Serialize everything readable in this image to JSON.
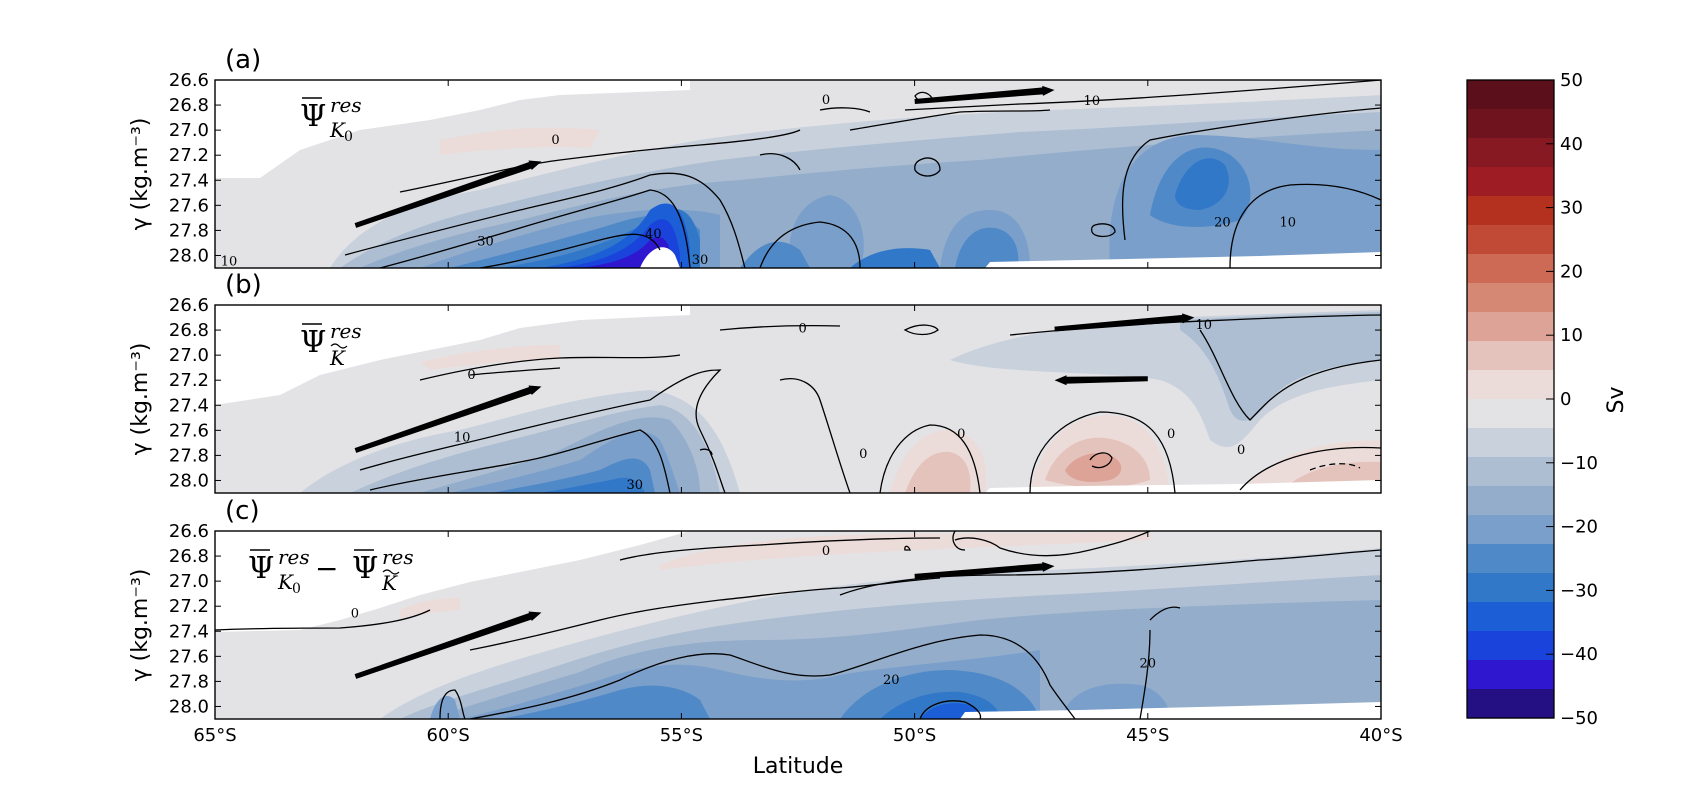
{
  "chart_data": {
    "type": "heatmap",
    "xlabel": "Latitude",
    "ylabel": "γ (kg.m⁻³)",
    "xlim": [
      -65,
      -40
    ],
    "ylim": [
      26.6,
      28.1
    ],
    "y_inverted": true,
    "x_ticks": [
      "65°S",
      "60°S",
      "55°S",
      "50°S",
      "45°S",
      "40°S"
    ],
    "y_ticks": [
      "26.6",
      "26.8",
      "27.0",
      "27.2",
      "27.4",
      "27.6",
      "27.8",
      "28.0"
    ],
    "colorbar": {
      "label": "Sv",
      "range": [
        -50,
        50
      ],
      "tick_labels": [
        "50",
        "40",
        "30",
        "20",
        "10",
        "0",
        "−10",
        "−20",
        "−30",
        "−40",
        "−50"
      ],
      "colors": [
        "#5a0f1a",
        "#6f131e",
        "#861922",
        "#9e1d25",
        "#b4301f",
        "#c04a36",
        "#cc6a56",
        "#d58874",
        "#dda397",
        "#e4c3bc",
        "#ecdcd9",
        "#e3e3e6",
        "#c9d1dc",
        "#adbed2",
        "#93adcb",
        "#7a9fca",
        "#5089c7",
        "#3278c9",
        "#1b5ed6",
        "#1a43db",
        "#2f17cf",
        "#241083"
      ]
    },
    "panels": [
      {
        "id": "a",
        "label": "(a)",
        "equation": "Ψ̄ res K0",
        "contour_labels": [
          {
            "text": "0",
            "lat": -57.7,
            "gamma": 27.07
          },
          {
            "text": "0",
            "lat": -51.9,
            "gamma": 26.75
          },
          {
            "text": "10",
            "lat": -46.2,
            "gamma": 26.76
          },
          {
            "text": "30",
            "lat": -59.2,
            "gamma": 27.88
          },
          {
            "text": "40",
            "lat": -55.6,
            "gamma": 27.82
          },
          {
            "text": "30",
            "lat": -54.6,
            "gamma": 28.03
          },
          {
            "text": "20",
            "lat": -43.4,
            "gamma": 27.73
          },
          {
            "text": "10",
            "lat": -42.0,
            "gamma": 27.73
          },
          {
            "text": "10",
            "lat": -64.7,
            "gamma": 28.04
          }
        ],
        "arrows": [
          {
            "from": [
              -62.0,
              27.75
            ],
            "to": [
              -58.0,
              27.25
            ]
          },
          {
            "from": [
              -50.0,
              26.76
            ],
            "to": [
              -47.0,
              26.68
            ]
          }
        ]
      },
      {
        "id": "b",
        "label": "(b)",
        "equation": "Ψ̄ res K̃",
        "contour_labels": [
          {
            "text": "0",
            "lat": -59.5,
            "gamma": 27.15
          },
          {
            "text": "0",
            "lat": -52.4,
            "gamma": 26.78
          },
          {
            "text": "10",
            "lat": -43.8,
            "gamma": 26.75
          },
          {
            "text": "10",
            "lat": -59.7,
            "gamma": 27.65
          },
          {
            "text": "0",
            "lat": -51.1,
            "gamma": 27.78
          },
          {
            "text": "0",
            "lat": -49.0,
            "gamma": 27.62
          },
          {
            "text": "0",
            "lat": -44.5,
            "gamma": 27.62
          },
          {
            "text": "0",
            "lat": -43.0,
            "gamma": 27.75
          },
          {
            "text": "30",
            "lat": -56.0,
            "gamma": 28.03
          }
        ],
        "arrows": [
          {
            "from": [
              -47.0,
              26.78
            ],
            "to": [
              -44.0,
              26.7
            ]
          },
          {
            "from": [
              -45.0,
              27.2
            ],
            "to": [
              -47.0,
              27.2
            ]
          },
          {
            "from": [
              -62.0,
              27.75
            ],
            "to": [
              -58.0,
              27.25
            ]
          }
        ]
      },
      {
        "id": "c",
        "label": "(c)",
        "equation": "Ψ̄ res K0 − Ψ̄ res K̃",
        "contour_labels": [
          {
            "text": "0",
            "lat": -62.0,
            "gamma": 27.25
          },
          {
            "text": "0",
            "lat": -51.9,
            "gamma": 26.75
          },
          {
            "text": "20",
            "lat": -50.5,
            "gamma": 27.78
          },
          {
            "text": "20",
            "lat": -45.0,
            "gamma": 27.65
          }
        ],
        "arrows": [
          {
            "from": [
              -62.0,
              27.75
            ],
            "to": [
              -58.0,
              27.25
            ]
          },
          {
            "from": [
              -50.0,
              26.95
            ],
            "to": [
              -47.0,
              26.88
            ]
          }
        ]
      }
    ]
  }
}
